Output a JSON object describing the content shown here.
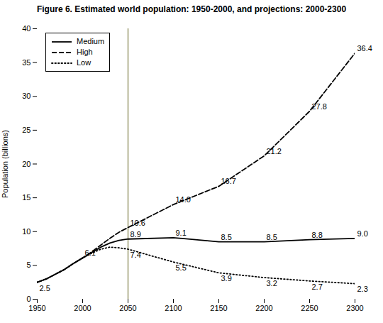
{
  "chart_data": {
    "type": "line",
    "title": "Figure 6. Estimated world population: 1950-2000, and projections: 2000-2300",
    "ylabel": "Population (billions)",
    "x": [
      1950,
      1960,
      1970,
      1980,
      1990,
      2000,
      2010,
      2020,
      2030,
      2040,
      2050,
      2100,
      2150,
      2200,
      2250,
      2300
    ],
    "series": [
      {
        "name": "Medium",
        "color": "#000000",
        "line_style": "solid",
        "values": [
          2.5,
          3.0,
          3.7,
          4.4,
          5.3,
          6.1,
          6.9,
          7.7,
          8.3,
          8.7,
          8.9,
          9.1,
          8.5,
          8.5,
          8.8,
          9.0
        ]
      },
      {
        "name": "High",
        "color": "#000000",
        "line_style": "dashed",
        "values": [
          2.5,
          3.0,
          3.7,
          4.4,
          5.3,
          6.1,
          7.0,
          8.0,
          9.0,
          9.9,
          10.6,
          14.0,
          16.7,
          21.2,
          27.8,
          36.4
        ]
      },
      {
        "name": "Low",
        "color": "#000000",
        "line_style": "dotted",
        "values": [
          2.5,
          3.0,
          3.7,
          4.4,
          5.3,
          6.1,
          6.8,
          7.4,
          7.7,
          7.6,
          7.4,
          5.5,
          3.9,
          3.2,
          2.7,
          2.3
        ]
      }
    ],
    "xlim": [
      1950,
      2300
    ],
    "ylim": [
      0,
      40
    ],
    "xticks": [
      1950,
      2000,
      2050,
      2100,
      2150,
      2200,
      2250,
      2300
    ],
    "yticks": [
      0,
      5,
      10,
      15,
      20,
      25,
      30,
      35,
      40
    ],
    "reference_lines": [
      {
        "x": 2050,
        "color": "#7a7a40"
      }
    ],
    "annotations": [
      {
        "x": 2000,
        "y": 6.1,
        "text": "6.1",
        "position": "above"
      },
      {
        "x": 2050,
        "y": 8.9,
        "text": "8.9",
        "position": "above"
      },
      {
        "x": 2100,
        "y": 9.1,
        "text": "9.1",
        "position": "above"
      },
      {
        "x": 2150,
        "y": 8.5,
        "text": "8.5",
        "position": "above"
      },
      {
        "x": 2200,
        "y": 8.5,
        "text": "8.5",
        "position": "above"
      },
      {
        "x": 2250,
        "y": 8.8,
        "text": "8.8",
        "position": "above"
      },
      {
        "x": 2300,
        "y": 9.0,
        "text": "9.0",
        "position": "above"
      },
      {
        "x": 2050,
        "y": 10.6,
        "text": "10.6",
        "position": "above"
      },
      {
        "x": 2100,
        "y": 14.0,
        "text": "14.0",
        "position": "above"
      },
      {
        "x": 2150,
        "y": 16.7,
        "text": "16.7",
        "position": "above"
      },
      {
        "x": 2200,
        "y": 21.2,
        "text": "21.2",
        "position": "above"
      },
      {
        "x": 2250,
        "y": 27.8,
        "text": "27.8",
        "position": "above"
      },
      {
        "x": 2300,
        "y": 36.4,
        "text": "36.4",
        "position": "above"
      },
      {
        "x": 2050,
        "y": 7.4,
        "text": "7.4",
        "position": "below"
      },
      {
        "x": 2100,
        "y": 5.5,
        "text": "5.5",
        "position": "below"
      },
      {
        "x": 2150,
        "y": 3.9,
        "text": "3.9",
        "position": "below"
      },
      {
        "x": 2200,
        "y": 3.2,
        "text": "3.2",
        "position": "below"
      },
      {
        "x": 2250,
        "y": 2.7,
        "text": "2.7",
        "position": "below"
      },
      {
        "x": 2300,
        "y": 2.3,
        "text": "2.3",
        "position": "below"
      },
      {
        "x": 1950,
        "y": 2.5,
        "text": "2.5",
        "position": "below"
      }
    ],
    "grid": false,
    "legend": "upper left"
  }
}
